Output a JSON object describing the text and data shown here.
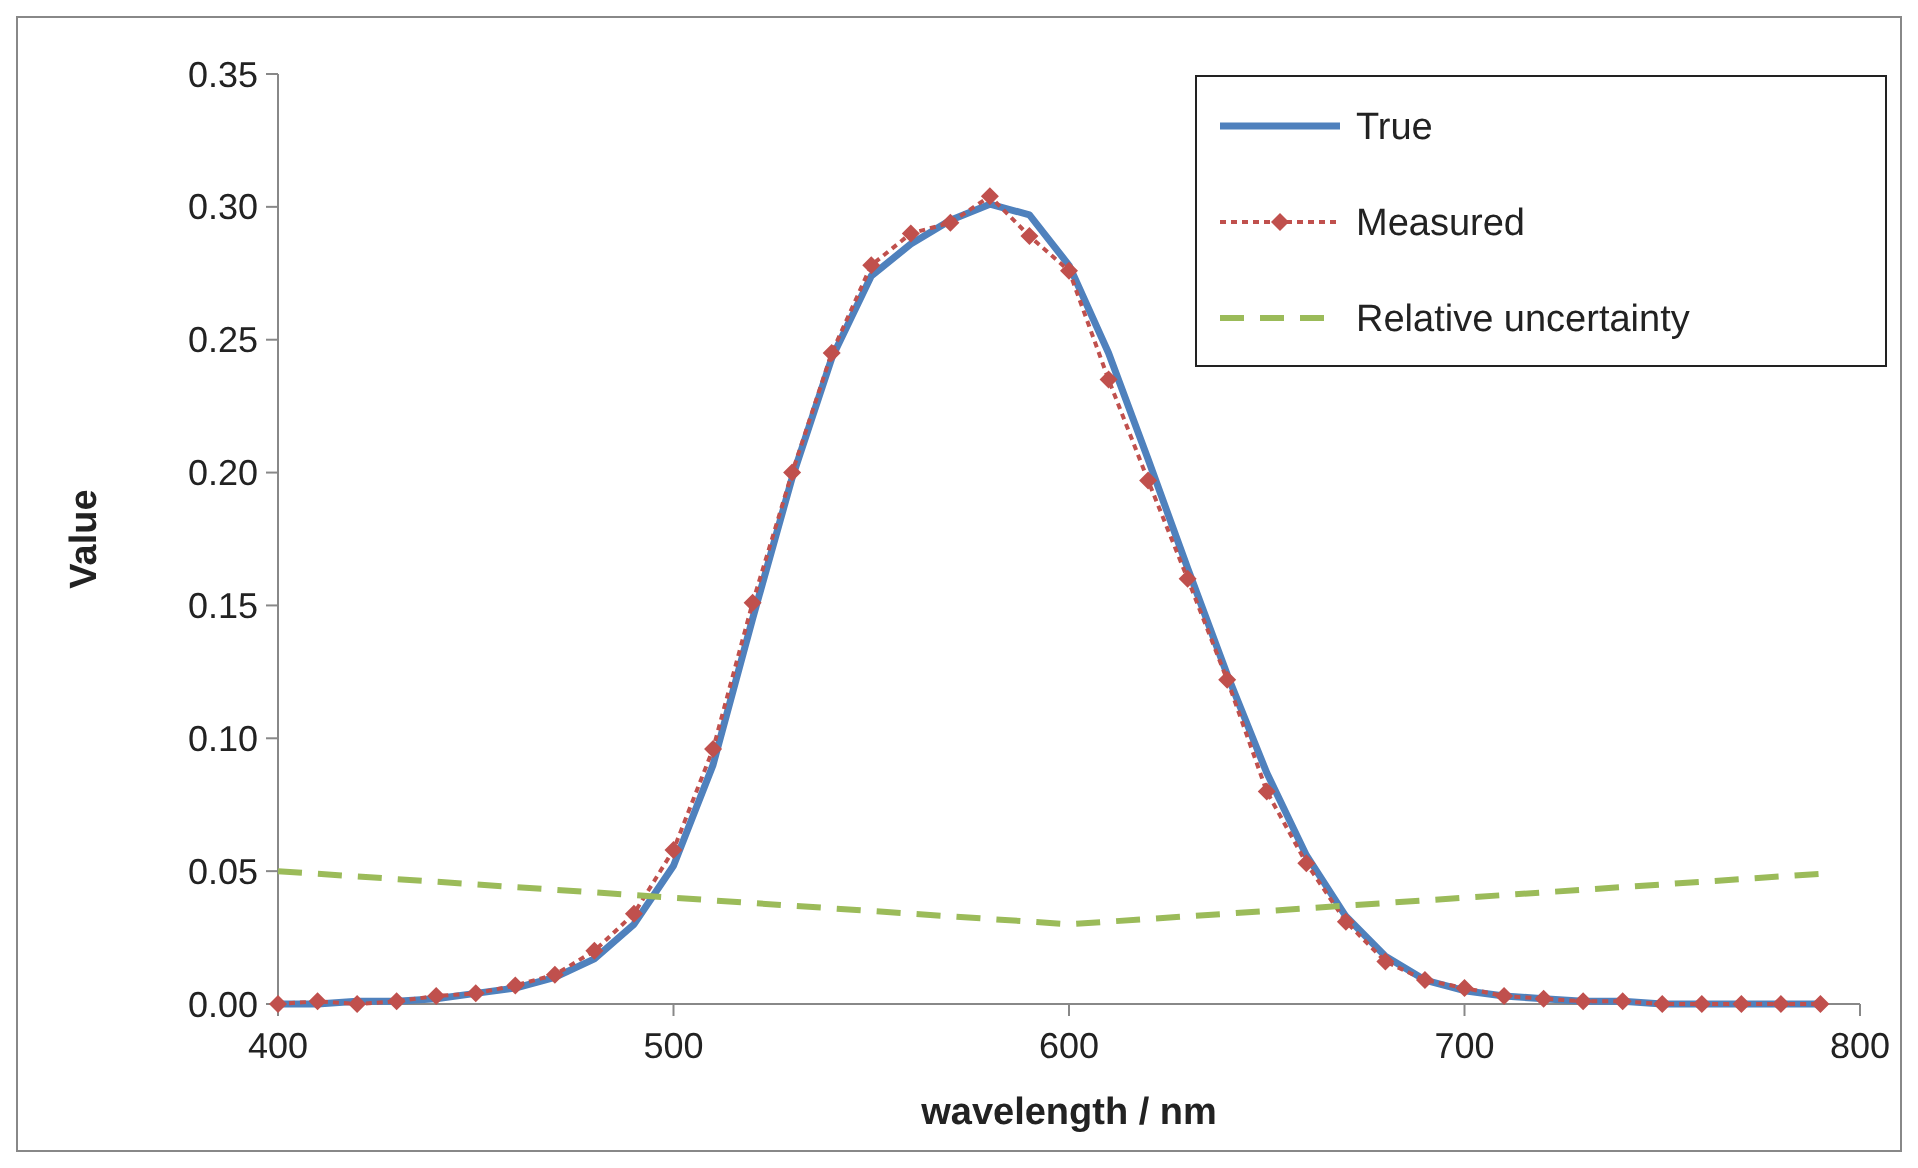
{
  "chart_data": {
    "type": "line",
    "xlabel": "wavelength / nm",
    "ylabel": "Value",
    "xlim": [
      400,
      800
    ],
    "xticks": [
      400,
      500,
      600,
      700,
      800
    ],
    "ylim": [
      0,
      0.35
    ],
    "yticks": [
      {
        "value": 0,
        "label": "0.00"
      },
      {
        "value": 0.05,
        "label": "0.05"
      },
      {
        "value": 0.1,
        "label": "0.10"
      },
      {
        "value": 0.15,
        "label": "0.15"
      },
      {
        "value": 0.2,
        "label": "0.20"
      },
      {
        "value": 0.25,
        "label": "0.25"
      },
      {
        "value": 0.3,
        "label": "0.30"
      },
      {
        "value": 0.35,
        "label": "0.35"
      }
    ],
    "grid": false,
    "legend": "top right",
    "series": [
      {
        "name": "True",
        "color": "#4f81bd",
        "line_style": "solid",
        "marker": "none",
        "x": [
          400,
          410,
          420,
          430,
          440,
          450,
          460,
          470,
          480,
          490,
          500,
          510,
          520,
          530,
          540,
          550,
          560,
          570,
          580,
          590,
          600,
          610,
          620,
          630,
          640,
          650,
          660,
          670,
          680,
          690,
          700,
          710,
          720,
          730,
          740,
          750,
          760,
          770,
          780,
          790
        ],
        "values": [
          0,
          0,
          0.001,
          0.001,
          0.002,
          0.004,
          0.006,
          0.01,
          0.017,
          0.03,
          0.052,
          0.09,
          0.145,
          0.198,
          0.243,
          0.274,
          0.286,
          0.295,
          0.301,
          0.297,
          0.278,
          0.245,
          0.205,
          0.164,
          0.124,
          0.087,
          0.056,
          0.033,
          0.018,
          0.009,
          0.005,
          0.003,
          0.002,
          0.001,
          0.001,
          0,
          0,
          0,
          0,
          0
        ]
      },
      {
        "name": "Measured",
        "color": "#c0504d",
        "line_style": "dotted",
        "marker": "diamond",
        "x": [
          400,
          410,
          420,
          430,
          440,
          450,
          460,
          470,
          480,
          490,
          500,
          510,
          520,
          530,
          540,
          550,
          560,
          570,
          580,
          590,
          600,
          610,
          620,
          630,
          640,
          650,
          660,
          670,
          680,
          690,
          700,
          710,
          720,
          730,
          740,
          750,
          760,
          770,
          780,
          790
        ],
        "values": [
          0,
          0.001,
          0,
          0.001,
          0.003,
          0.004,
          0.007,
          0.011,
          0.02,
          0.034,
          0.058,
          0.096,
          0.151,
          0.2,
          0.245,
          0.278,
          0.29,
          0.294,
          0.304,
          0.289,
          0.276,
          0.235,
          0.197,
          0.16,
          0.122,
          0.08,
          0.053,
          0.031,
          0.016,
          0.009,
          0.006,
          0.003,
          0.002,
          0.001,
          0.001,
          0,
          0,
          0,
          0,
          0
        ]
      },
      {
        "name": "Relative uncertainty",
        "color": "#9bbb59",
        "line_style": "dashed",
        "marker": "none",
        "x": [
          400,
          450,
          500,
          550,
          600,
          650,
          700,
          750,
          790
        ],
        "values": [
          0.05,
          0.045,
          0.04,
          0.035,
          0.03,
          0.035,
          0.04,
          0.045,
          0.049
        ]
      }
    ]
  }
}
